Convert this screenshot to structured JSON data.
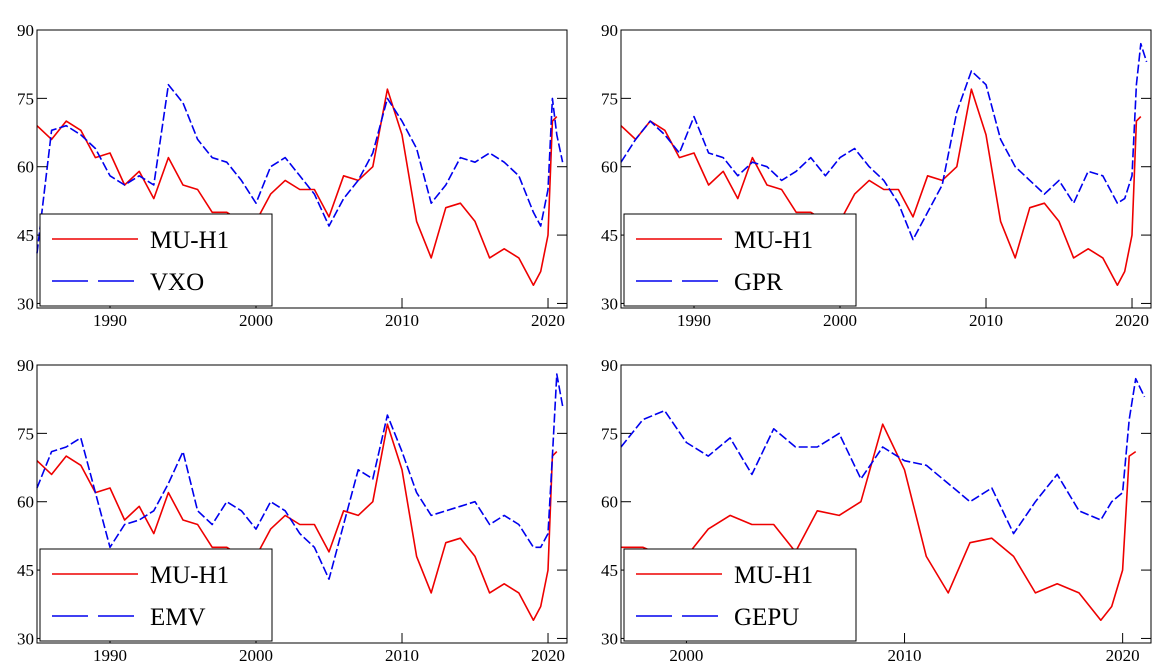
{
  "colors": {
    "red": "#ee0000",
    "blue": "#0000ee",
    "axis": "#000000"
  },
  "chart_data": [
    {
      "type": "line",
      "xlim": [
        1985,
        2021.3
      ],
      "ylim": [
        29,
        90
      ],
      "yticks": [
        30,
        45,
        60,
        75,
        90
      ],
      "ytick_labels": [
        "30",
        "45",
        "60",
        "75",
        "90"
      ],
      "xticks": [
        1990,
        2000,
        2010,
        2020
      ],
      "xtick_labels": [
        "1990",
        "2000",
        "2010",
        "2020"
      ],
      "legend_position": "bottom-left",
      "series": [
        {
          "name": "MU-H1",
          "color": "red",
          "style": "solid",
          "x": [
            1985,
            1986,
            1987,
            1988,
            1989,
            1990,
            1991,
            1992,
            1993,
            1994,
            1995,
            1996,
            1997,
            1998,
            1999,
            2000,
            2001,
            2002,
            2003,
            2004,
            2005,
            2006,
            2007,
            2008,
            2009,
            2010,
            2011,
            2012,
            2013,
            2014,
            2015,
            2016,
            2017,
            2018,
            2019,
            2019.5,
            2020,
            2020.3,
            2020.6
          ],
          "y": [
            69,
            66,
            70,
            68,
            62,
            63,
            56,
            59,
            53,
            62,
            56,
            55,
            50,
            50,
            48,
            48,
            54,
            57,
            55,
            55,
            49,
            58,
            57,
            60,
            77,
            67,
            48,
            40,
            51,
            52,
            48,
            40,
            42,
            40,
            34,
            37,
            45,
            70,
            71
          ]
        },
        {
          "name": "VXO",
          "color": "blue",
          "style": "dashed",
          "x": [
            1985,
            1986,
            1987,
            1988,
            1989,
            1990,
            1991,
            1992,
            1993,
            1994,
            1995,
            1996,
            1997,
            1998,
            1999,
            2000,
            2001,
            2002,
            2003,
            2004,
            2005,
            2006,
            2007,
            2008,
            2009,
            2010,
            2011,
            2012,
            2013,
            2014,
            2015,
            2016,
            2017,
            2018,
            2019,
            2019.5,
            2020,
            2020.3,
            2020.6,
            2021
          ],
          "y": [
            41,
            68,
            69,
            67,
            64,
            58,
            56,
            58,
            56,
            78,
            74,
            66,
            62,
            61,
            57,
            52,
            60,
            62,
            58,
            54,
            47,
            53,
            57,
            63,
            75,
            70,
            64,
            52,
            56,
            62,
            61,
            63,
            61,
            58,
            50,
            47,
            55,
            75,
            67,
            61
          ]
        }
      ]
    },
    {
      "type": "line",
      "xlim": [
        1985,
        2021.3
      ],
      "ylim": [
        29,
        90
      ],
      "yticks": [
        30,
        45,
        60,
        75,
        90
      ],
      "ytick_labels": [
        "30",
        "45",
        "60",
        "75",
        "90"
      ],
      "xticks": [
        1990,
        2000,
        2010,
        2020
      ],
      "xtick_labels": [
        "1990",
        "2000",
        "2010",
        "2020"
      ],
      "legend_position": "bottom-left",
      "series": [
        {
          "name": "MU-H1",
          "color": "red",
          "style": "solid",
          "x": [
            1985,
            1986,
            1987,
            1988,
            1989,
            1990,
            1991,
            1992,
            1993,
            1994,
            1995,
            1996,
            1997,
            1998,
            1999,
            2000,
            2001,
            2002,
            2003,
            2004,
            2005,
            2006,
            2007,
            2008,
            2009,
            2010,
            2011,
            2012,
            2013,
            2014,
            2015,
            2016,
            2017,
            2018,
            2019,
            2019.5,
            2020,
            2020.3,
            2020.6
          ],
          "y": [
            69,
            66,
            70,
            68,
            62,
            63,
            56,
            59,
            53,
            62,
            56,
            55,
            50,
            50,
            48,
            48,
            54,
            57,
            55,
            55,
            49,
            58,
            57,
            60,
            77,
            67,
            48,
            40,
            51,
            52,
            48,
            40,
            42,
            40,
            34,
            37,
            45,
            70,
            71
          ]
        },
        {
          "name": "GPR",
          "color": "blue",
          "style": "dashed",
          "x": [
            1985,
            1986,
            1987,
            1988,
            1989,
            1990,
            1991,
            1992,
            1993,
            1994,
            1995,
            1996,
            1997,
            1998,
            1999,
            2000,
            2001,
            2002,
            2003,
            2004,
            2005,
            2006,
            2007,
            2008,
            2009,
            2010,
            2011,
            2012,
            2013,
            2014,
            2015,
            2016,
            2017,
            2018,
            2019,
            2019.5,
            2020,
            2020.3,
            2020.6,
            2021
          ],
          "y": [
            61,
            66,
            70,
            67,
            63,
            71,
            63,
            62,
            58,
            61,
            60,
            57,
            59,
            62,
            58,
            62,
            64,
            60,
            57,
            52,
            44,
            50,
            56,
            72,
            81,
            78,
            66,
            60,
            57,
            54,
            57,
            52,
            59,
            58,
            52,
            53,
            58,
            78,
            87,
            83
          ]
        }
      ]
    },
    {
      "type": "line",
      "xlim": [
        1985,
        2021.3
      ],
      "ylim": [
        29,
        90
      ],
      "yticks": [
        30,
        45,
        60,
        75,
        90
      ],
      "ytick_labels": [
        "30",
        "45",
        "60",
        "75",
        "90"
      ],
      "xticks": [
        1990,
        2000,
        2010,
        2020
      ],
      "xtick_labels": [
        "1990",
        "2000",
        "2010",
        "2020"
      ],
      "legend_position": "bottom-left",
      "series": [
        {
          "name": "MU-H1",
          "color": "red",
          "style": "solid",
          "x": [
            1985,
            1986,
            1987,
            1988,
            1989,
            1990,
            1991,
            1992,
            1993,
            1994,
            1995,
            1996,
            1997,
            1998,
            1999,
            2000,
            2001,
            2002,
            2003,
            2004,
            2005,
            2006,
            2007,
            2008,
            2009,
            2010,
            2011,
            2012,
            2013,
            2014,
            2015,
            2016,
            2017,
            2018,
            2019,
            2019.5,
            2020,
            2020.3,
            2020.6
          ],
          "y": [
            69,
            66,
            70,
            68,
            62,
            63,
            56,
            59,
            53,
            62,
            56,
            55,
            50,
            50,
            48,
            48,
            54,
            57,
            55,
            55,
            49,
            58,
            57,
            60,
            77,
            67,
            48,
            40,
            51,
            52,
            48,
            40,
            42,
            40,
            34,
            37,
            45,
            70,
            71
          ]
        },
        {
          "name": "EMV",
          "color": "blue",
          "style": "dashed",
          "x": [
            1985,
            1986,
            1987,
            1988,
            1989,
            1990,
            1991,
            1992,
            1993,
            1994,
            1995,
            1996,
            1997,
            1998,
            1999,
            2000,
            2001,
            2002,
            2003,
            2004,
            2005,
            2006,
            2007,
            2008,
            2009,
            2010,
            2011,
            2012,
            2013,
            2014,
            2015,
            2016,
            2017,
            2018,
            2019,
            2019.5,
            2020,
            2020.3,
            2020.6,
            2021
          ],
          "y": [
            63,
            71,
            72,
            74,
            62,
            50,
            55,
            56,
            58,
            64,
            71,
            58,
            55,
            60,
            58,
            54,
            60,
            58,
            53,
            50,
            43,
            55,
            67,
            65,
            79,
            71,
            62,
            57,
            58,
            59,
            60,
            55,
            57,
            55,
            50,
            50,
            53,
            70,
            88,
            81
          ]
        }
      ]
    },
    {
      "type": "line",
      "xlim": [
        1997,
        2021.3
      ],
      "ylim": [
        29,
        90
      ],
      "yticks": [
        30,
        45,
        60,
        75,
        90
      ],
      "ytick_labels": [
        "30",
        "45",
        "60",
        "75",
        "90"
      ],
      "xticks": [
        2000,
        2010,
        2020
      ],
      "xtick_labels": [
        "2000",
        "2010",
        "2020"
      ],
      "legend_position": "bottom-left",
      "series": [
        {
          "name": "MU-H1",
          "color": "red",
          "style": "solid",
          "x": [
            1997,
            1998,
            1999,
            2000,
            2001,
            2002,
            2003,
            2004,
            2005,
            2006,
            2007,
            2008,
            2009,
            2010,
            2011,
            2012,
            2013,
            2014,
            2015,
            2016,
            2017,
            2018,
            2019,
            2019.5,
            2020,
            2020.3,
            2020.6
          ],
          "y": [
            50,
            50,
            48,
            48,
            54,
            57,
            55,
            55,
            49,
            58,
            57,
            60,
            77,
            67,
            48,
            40,
            51,
            52,
            48,
            40,
            42,
            40,
            34,
            37,
            45,
            70,
            71
          ]
        },
        {
          "name": "GEPU",
          "color": "blue",
          "style": "dashed",
          "x": [
            1997,
            1998,
            1999,
            2000,
            2001,
            2002,
            2003,
            2004,
            2005,
            2006,
            2007,
            2008,
            2009,
            2010,
            2011,
            2012,
            2013,
            2014,
            2015,
            2016,
            2017,
            2018,
            2019,
            2019.5,
            2020,
            2020.3,
            2020.6,
            2021
          ],
          "y": [
            72,
            78,
            80,
            73,
            70,
            74,
            66,
            76,
            72,
            72,
            75,
            65,
            72,
            69,
            68,
            64,
            60,
            63,
            53,
            60,
            66,
            58,
            56,
            60,
            62,
            78,
            87,
            83
          ]
        }
      ]
    }
  ]
}
